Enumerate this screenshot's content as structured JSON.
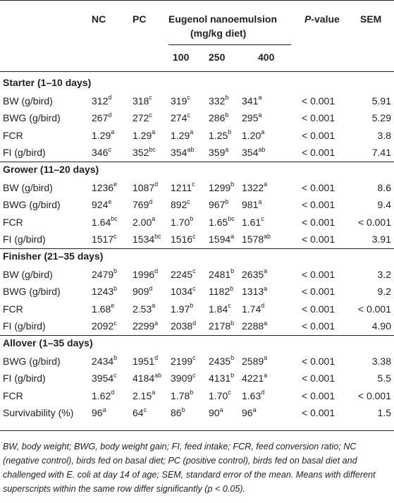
{
  "header": {
    "col_nc": "NC",
    "col_pc": "PC",
    "col_eug_line1": "Eugenol nanoemulsion",
    "col_eug_line2": "(mg/kg diet)",
    "col_pvalue_italic": "P",
    "col_pvalue_rest": "-value",
    "col_sem": "SEM",
    "dose_100": "100",
    "dose_250": "250",
    "dose_400": "400"
  },
  "sections": [
    {
      "title": "Starter (1–10 days)",
      "rows": [
        {
          "label": "BW (g/bird)",
          "cells": [
            [
              "312",
              "d"
            ],
            [
              "318",
              "c"
            ],
            [
              "319",
              "c"
            ],
            [
              "332",
              "b"
            ],
            [
              "341",
              "a"
            ]
          ],
          "p": "< 0.001",
          "sem": "5.91"
        },
        {
          "label": "BWG (g/bird)",
          "cells": [
            [
              "267",
              "d"
            ],
            [
              "272",
              "c"
            ],
            [
              "274",
              "c"
            ],
            [
              "286",
              "b"
            ],
            [
              "295",
              "a"
            ]
          ],
          "p": "< 0.001",
          "sem": "5.29"
        },
        {
          "label": "FCR",
          "cells": [
            [
              "1.29",
              "a"
            ],
            [
              "1.29",
              "a"
            ],
            [
              "1.29",
              "a"
            ],
            [
              "1.25",
              "b"
            ],
            [
              "1.20",
              "a"
            ]
          ],
          "p": "< 0.001",
          "sem": "3.8"
        },
        {
          "label": "FI (g/bird)",
          "cells": [
            [
              "346",
              "c"
            ],
            [
              "352",
              "bc"
            ],
            [
              "354",
              "ab"
            ],
            [
              "359",
              "a"
            ],
            [
              "354",
              "ab"
            ]
          ],
          "p": "< 0.001",
          "sem": "7.41"
        }
      ]
    },
    {
      "title": "Grower (11–20 days)",
      "rows": [
        {
          "label": "BW (g/bird)",
          "cells": [
            [
              "1236",
              "e"
            ],
            [
              "1087",
              "d"
            ],
            [
              "1211",
              "c"
            ],
            [
              "1299",
              "b"
            ],
            [
              "1322",
              "a"
            ]
          ],
          "p": "< 0.001",
          "sem": "8.6"
        },
        {
          "label": "BWG (g/bird)",
          "cells": [
            [
              "924",
              "e"
            ],
            [
              "769",
              "d"
            ],
            [
              "892",
              "c"
            ],
            [
              "967",
              "b"
            ],
            [
              "981",
              "a"
            ]
          ],
          "p": "< 0.001",
          "sem": "9.4"
        },
        {
          "label": "FCR",
          "cells": [
            [
              "1.64",
              "bc"
            ],
            [
              "2.00",
              "a"
            ],
            [
              "1.70",
              "b"
            ],
            [
              "1.65",
              "bc"
            ],
            [
              "1.61",
              "c"
            ]
          ],
          "p": "< 0.001",
          "sem": "< 0.001"
        },
        {
          "label": "FI (g/bird)",
          "cells": [
            [
              "1517",
              "c"
            ],
            [
              "1534",
              "bc"
            ],
            [
              "1516",
              "c"
            ],
            [
              "1594",
              "a"
            ],
            [
              "1578",
              "ab"
            ]
          ],
          "p": "< 0.001",
          "sem": "3.91"
        }
      ]
    },
    {
      "title": "Finisher (21–35 days)",
      "rows": [
        {
          "label": "BW (g/bird)",
          "cells": [
            [
              "2479",
              "b"
            ],
            [
              "1996",
              "d"
            ],
            [
              "2245",
              "c"
            ],
            [
              "2481",
              "b"
            ],
            [
              "2635",
              "a"
            ]
          ],
          "p": "< 0.001",
          "sem": "3.2"
        },
        {
          "label": "BWG (g/bird)",
          "cells": [
            [
              "1243",
              "b"
            ],
            [
              "909",
              "d"
            ],
            [
              "1034",
              "c"
            ],
            [
              "1182",
              "b"
            ],
            [
              "1313",
              "a"
            ]
          ],
          "p": "< 0.001",
          "sem": "9.2"
        },
        {
          "label": "FCR",
          "cells": [
            [
              "1.68",
              "e"
            ],
            [
              "2.53",
              "a"
            ],
            [
              "1.97",
              "b"
            ],
            [
              "1.84",
              "c"
            ],
            [
              "1.74",
              "d"
            ]
          ],
          "p": "< 0.001",
          "sem": "< 0.001"
        },
        {
          "label": "FI (g/bird)",
          "cells": [
            [
              "2092",
              "c"
            ],
            [
              "2299",
              "a"
            ],
            [
              "2038",
              "d"
            ],
            [
              "2178",
              "b"
            ],
            [
              "2288",
              "a"
            ]
          ],
          "p": "< 0.001",
          "sem": "4.90"
        }
      ]
    },
    {
      "title": "Allover (1–35 days)",
      "rows": [
        {
          "label": "BWG (g/bird)",
          "cells": [
            [
              "2434",
              "b"
            ],
            [
              "1951",
              "d"
            ],
            [
              "2199",
              "c"
            ],
            [
              "2435",
              "b"
            ],
            [
              "2589",
              "a"
            ]
          ],
          "p": "< 0.001",
          "sem": "3.38"
        },
        {
          "label": "FI (g/bird)",
          "cells": [
            [
              "3954",
              "c"
            ],
            [
              "4184",
              "ab"
            ],
            [
              "3909",
              "c"
            ],
            [
              "4131",
              "b"
            ],
            [
              "4221",
              "a"
            ]
          ],
          "p": "< 0.001",
          "sem": "5.5"
        },
        {
          "label": "FCR",
          "cells": [
            [
              "1.62",
              "d"
            ],
            [
              "2.15",
              "a"
            ],
            [
              "1.78",
              "b"
            ],
            [
              "1.70",
              "c"
            ],
            [
              "1.63",
              "d"
            ]
          ],
          "p": "< 0.001",
          "sem": "< 0.001"
        },
        {
          "label": "Survivability (%)",
          "cells": [
            [
              "96",
              "a"
            ],
            [
              "64",
              "c"
            ],
            [
              "86",
              "b"
            ],
            [
              "90",
              "a"
            ],
            [
              "96",
              "a"
            ]
          ],
          "p": "< 0.001",
          "sem": "1.5"
        }
      ]
    }
  ],
  "footnote": {
    "part1": "BW, body weight; BWG, body weight gain; FI, feed intake; FCR, feed conversion ratio; NC (negative control), birds fed on basal diet; PC (positive control), birds fed on basal diet and challenged with E. coli at day 14 of age; SEM, standard error of the mean. Means with different superscripts within the same row differ significantly (",
    "p_letter": "p",
    "part2": " < 0.05)."
  }
}
